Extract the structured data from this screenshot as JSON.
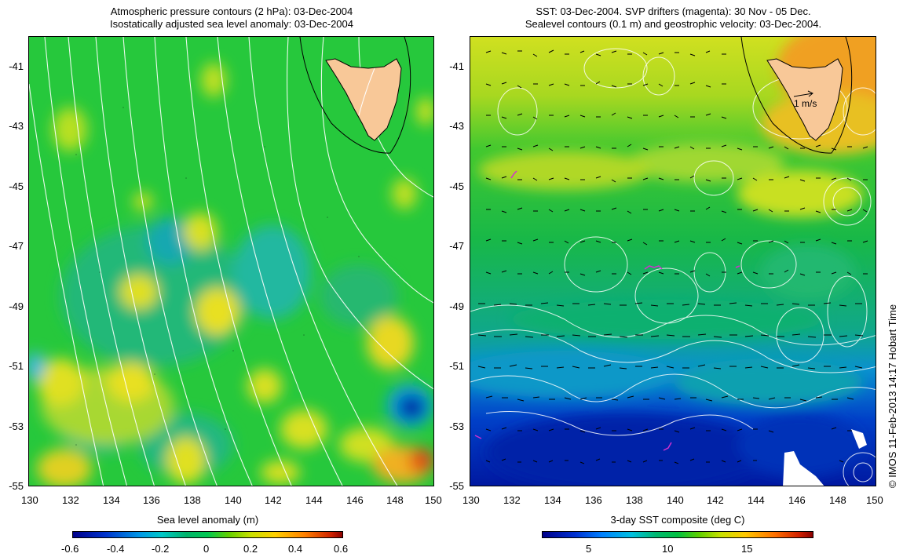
{
  "left_panel": {
    "title_line1": "Atmospheric pressure contours (2 hPa): 03-Dec-2004",
    "title_line2": "Isostatically adjusted sea level anomaly: 03-Dec-2004",
    "colorbar_title": "Sea level anomaly (m)",
    "colorbar_ticks": [
      "-0.6",
      "-0.4",
      "-0.2",
      "0",
      "0.2",
      "0.4",
      "0.6"
    ],
    "colorbar_range": [
      -0.6,
      0.6
    ]
  },
  "right_panel": {
    "title_line1": "SST: 03-Dec-2004. SVP drifters (magenta): 30 Nov - 05 Dec.",
    "title_line2": "Sealevel contours (0.1 m) and geostrophic velocity: 03-Dec-2004.",
    "colorbar_title": "3-day SST composite (deg C)",
    "colorbar_ticks": [
      "5",
      "10",
      "15"
    ],
    "colorbar_range": [
      2,
      19
    ],
    "velocity_scale_label": "1 m/s"
  },
  "axes": {
    "x_ticks": [
      "130",
      "132",
      "134",
      "136",
      "138",
      "140",
      "142",
      "144",
      "146",
      "148",
      "150"
    ],
    "y_ticks": [
      "-41",
      "-43",
      "-45",
      "-47",
      "-49",
      "-51",
      "-53",
      "-55"
    ],
    "lon_range": [
      130,
      150
    ],
    "lat_range": [
      -55,
      -40
    ]
  },
  "credit": "© IMOS 11-Feb-2013 14:17 Hobart Time",
  "colors": {
    "land": "#f8c898",
    "contour": "#ffffff",
    "drifter": "#d030d0",
    "arrow": "#000000"
  }
}
